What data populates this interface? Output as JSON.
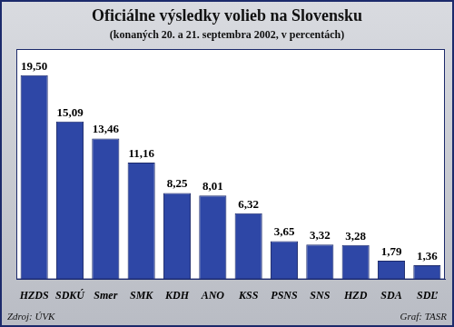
{
  "chart_data": {
    "type": "bar",
    "title": "Oficiálne výsledky volieb na Slovensku",
    "subtitle": "(konaných 20. a 21. septembra 2002, v percentách)",
    "categories": [
      "HZDS",
      "SDKÚ",
      "Smer",
      "SMK",
      "KDH",
      "ANO",
      "KSS",
      "PSNS",
      "SNS",
      "HZD",
      "SDA",
      "SDĽ"
    ],
    "values": [
      19.5,
      15.09,
      13.46,
      11.16,
      8.25,
      8.01,
      6.32,
      3.65,
      3.32,
      3.28,
      1.79,
      1.36
    ],
    "value_labels": [
      "19,50",
      "15,09",
      "13,46",
      "11,16",
      "8,25",
      "8,01",
      "6,32",
      "3,65",
      "3,32",
      "3,28",
      "1,79",
      "1,36"
    ],
    "color": "#2e47a6",
    "ylim": [
      0,
      22
    ],
    "grid": false,
    "data_labels": true,
    "tick_labels": "x",
    "source": "Zdroj: ÚVK",
    "credit": "Graf: TASR"
  }
}
